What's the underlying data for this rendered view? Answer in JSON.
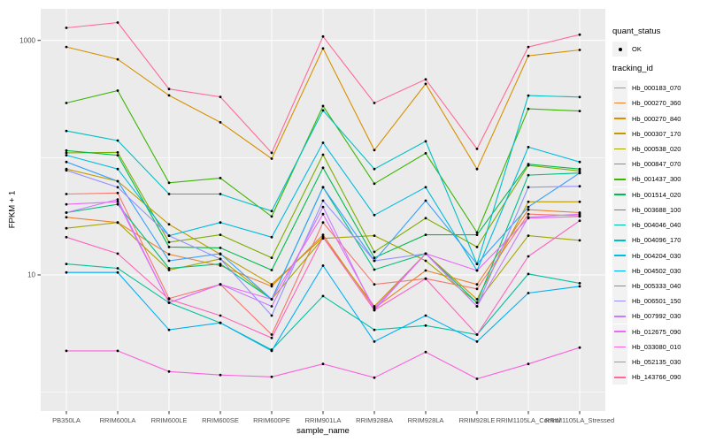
{
  "colors": {
    "background": "#FFFFFF",
    "panel_bg": "#EBEBEB",
    "grid": "#FFFFFF",
    "axis_text": "#4D4D4D",
    "tick_mark": "#333333",
    "legend_key_bg": "#F2F2F2",
    "point_marker": "#000000"
  },
  "chart_data": {
    "type": "line",
    "title": "",
    "xlabel": "sample_name",
    "ylabel": "FPKM + 1",
    "x_categories": [
      "PB350LA",
      "RRIM600LA",
      "RRIM600LE",
      "RRIM600SE",
      "RRIM600PE",
      "RRIM901LA",
      "RRIM928BA",
      "RRIM928LA",
      "RRIM928LE",
      "RRIM1105LA_Control",
      "RRIM1105LA_Stressed"
    ],
    "y_scale": "log10",
    "y_ticks": [
      1000,
      10
    ],
    "y_minor_ticks": [
      100,
      1
    ],
    "ylim": [
      0.69,
      1860
    ],
    "grid": true,
    "legend_position": "right",
    "marker": {
      "shape": "point",
      "color": "#000000"
    },
    "legend": {
      "quant_status_title": "quant_status",
      "quant_status_items": [
        {
          "label": "OK",
          "marker": "point"
        }
      ],
      "tracking_id_title": "tracking_id"
    },
    "series": [
      {
        "name": "Hb_000183_070",
        "color": "#F8766D",
        "values": [
          49,
          50,
          6.3,
          8.3,
          3.1,
          28,
          8.3,
          9.3,
          7.6,
          33,
          32
        ]
      },
      {
        "name": "Hb_000270_360",
        "color": "#EA8331",
        "values": [
          31,
          28,
          15,
          12,
          8.0,
          22,
          5.2,
          10.9,
          8.3,
          36,
          34
        ]
      },
      {
        "name": "Hb_000270_840",
        "color": "#D89000",
        "values": [
          880,
          690,
          340,
          200,
          98,
          855,
          116,
          426,
          80,
          740,
          830
        ]
      },
      {
        "name": "Hb_000307_170",
        "color": "#C09B00",
        "values": [
          80,
          63,
          27,
          15,
          8.3,
          21,
          5.4,
          15.2,
          6.2,
          42,
          42
        ]
      },
      {
        "name": "Hb_000538_020",
        "color": "#A3A500",
        "values": [
          25,
          28,
          11,
          13.7,
          6.2,
          20.5,
          21.6,
          13.2,
          5.8,
          21.6,
          19.7
        ]
      },
      {
        "name": "Hb_000847_070",
        "color": "#7CAE00",
        "values": [
          110,
          111,
          19,
          22,
          14,
          106,
          15.7,
          30.5,
          17.3,
          86,
          77
        ]
      },
      {
        "name": "Hb_001437_300",
        "color": "#39B600",
        "values": [
          293,
          373,
          61,
          67,
          31.5,
          276,
          60,
          109,
          23,
          261,
          250
        ]
      },
      {
        "name": "Hb_001514_020",
        "color": "#00BB4E",
        "values": [
          115,
          105,
          17.3,
          17,
          11,
          82,
          14,
          22,
          22,
          88,
          80
        ]
      },
      {
        "name": "Hb_003688_100",
        "color": "#00BF7D",
        "values": [
          34,
          40,
          11.4,
          12.4,
          6.2,
          56,
          11.1,
          15.2,
          5.8,
          71,
          74
        ]
      },
      {
        "name": "Hb_004046_040",
        "color": "#00C1A3",
        "values": [
          12.4,
          11.4,
          5.8,
          3.9,
          2.3,
          6.6,
          3.4,
          3.7,
          3.1,
          10.2,
          8.5
        ]
      },
      {
        "name": "Hb_004096_170",
        "color": "#00BFC4",
        "values": [
          169,
          140,
          49,
          49,
          35,
          253,
          80,
          138,
          12.4,
          339,
          329
        ]
      },
      {
        "name": "Hb_004204_030",
        "color": "#00BAE0",
        "values": [
          105,
          80,
          21.6,
          28,
          21,
          134,
          32.4,
          56,
          10.9,
          123,
          92
        ]
      },
      {
        "name": "Hb_004502_030",
        "color": "#00B0F6",
        "values": [
          10.5,
          10.5,
          3.4,
          3.9,
          2.25,
          12,
          2.7,
          4.5,
          2.7,
          7.0,
          8.0
        ]
      },
      {
        "name": "Hb_005333_040",
        "color": "#35A2FF",
        "values": [
          92,
          63,
          13.2,
          15.2,
          6.2,
          56,
          13.2,
          43,
          12.4,
          38,
          74
        ]
      },
      {
        "name": "Hb_006501_150",
        "color": "#9590FF",
        "values": [
          78,
          56,
          21.6,
          13.7,
          4.5,
          43,
          13.2,
          15.2,
          5.4,
          56,
          57
        ]
      },
      {
        "name": "Hb_007992_030",
        "color": "#C77CFF",
        "values": [
          34,
          44,
          5.8,
          8.3,
          5.4,
          38,
          5.0,
          15.2,
          5.4,
          31,
          33
        ]
      },
      {
        "name": "Hb_012675_090",
        "color": "#E76BF3",
        "values": [
          40,
          42,
          5.8,
          8.3,
          6.2,
          33,
          5.2,
          15.2,
          10.9,
          30.5,
          31.5
        ]
      },
      {
        "name": "Hb_033080_010",
        "color": "#FA62DB",
        "values": [
          2.25,
          2.25,
          1.5,
          1.4,
          1.35,
          1.74,
          1.33,
          2.2,
          1.3,
          1.74,
          2.4
        ]
      },
      {
        "name": "Hb_052135_030",
        "color": "#FF62BC",
        "values": [
          21,
          15.2,
          6.2,
          4.5,
          2.9,
          21,
          5.0,
          9.3,
          3.1,
          14.4,
          29
        ]
      },
      {
        "name": "Hb_143766_090",
        "color": "#FF6A98",
        "values": [
          1280,
          1420,
          385,
          330,
          110,
          1080,
          293,
          465,
          119,
          880,
          1120
        ]
      }
    ]
  }
}
